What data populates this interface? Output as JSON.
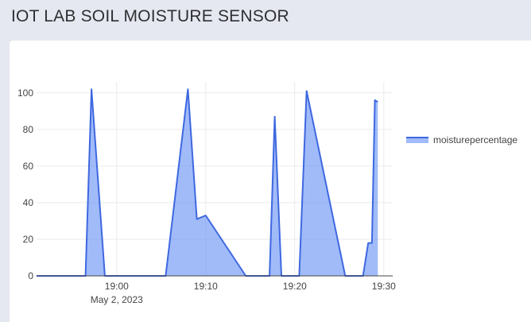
{
  "app": {
    "title": "IOT LAB SOIL MOISTURE SENSOR"
  },
  "chart_data": {
    "type": "area",
    "title": "",
    "xlabel": "",
    "ylabel": "",
    "x_date_label": "May 2, 2023",
    "x_ticks": [
      "19:00",
      "19:10",
      "19:20",
      "19:30"
    ],
    "y_ticks": [
      0,
      20,
      40,
      60,
      80,
      100
    ],
    "ylim": [
      0,
      106
    ],
    "xlim": [
      "18:51:00",
      "19:31:00"
    ],
    "grid": true,
    "legend_position": "right",
    "series": [
      {
        "name": "moisturepercentage",
        "color": "#3e68e0",
        "fill": "rgba(99,141,245,0.6)",
        "x": [
          "18:51:00",
          "18:56:30",
          "18:57:10",
          "18:58:40",
          "19:03:00",
          "19:05:30",
          "19:08:00",
          "19:09:00",
          "19:10:00",
          "19:14:30",
          "19:17:10",
          "19:17:45",
          "19:18:30",
          "19:20:30",
          "19:21:20",
          "19:25:40",
          "19:27:40",
          "19:28:15",
          "19:28:40",
          "19:29:00",
          "19:29:20"
        ],
        "values": [
          0,
          0,
          102,
          0,
          0,
          0,
          102,
          31,
          33,
          0,
          0,
          87,
          0,
          0,
          101,
          0,
          0,
          18,
          18,
          96,
          95
        ]
      }
    ]
  }
}
